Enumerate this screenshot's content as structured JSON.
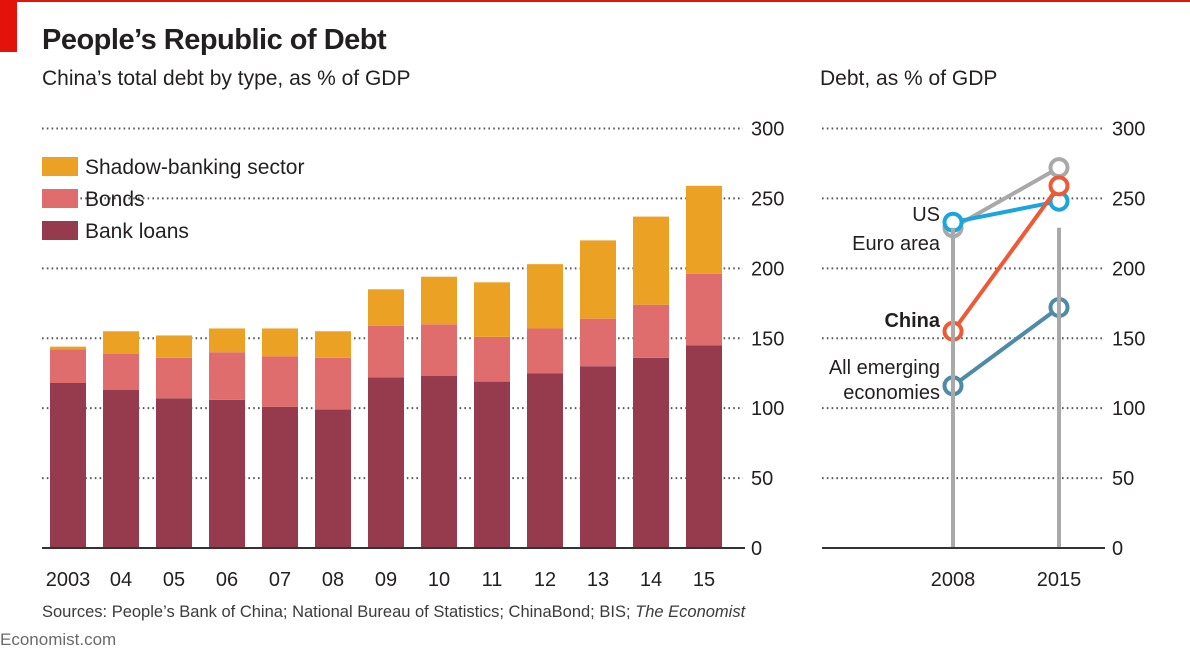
{
  "header": {
    "title": "People’s Republic of Debt",
    "subtitle_left": "China’s total debt by type, as % of GDP",
    "subtitle_right": "Debt, as % of GDP"
  },
  "footer": {
    "sources_prefix": "Sources: People’s Bank of China; National Bureau of Statistics; ChinaBond; BIS; ",
    "sources_italic": "The Economist",
    "brand": "Economist.com"
  },
  "colors": {
    "brand_red": "#e3120b",
    "shadow_banking": "#eba224",
    "bonds": "#df6d6d",
    "bank_loans": "#963b4d",
    "us": "#1ba5dc",
    "euro_area": "#a9a9a9",
    "china": "#ee5a36",
    "emerging": "#4d8ba6"
  },
  "chart_data": [
    {
      "type": "bar",
      "stacked": true,
      "title": "China’s total debt by type, as % of GDP",
      "xlabel": "",
      "ylabel": "",
      "categories": [
        "2003",
        "04",
        "05",
        "06",
        "07",
        "08",
        "09",
        "10",
        "11",
        "12",
        "13",
        "14",
        "15"
      ],
      "series": [
        {
          "name": "Bank loans",
          "color": "#963b4d",
          "values": [
            118,
            113,
            107,
            106,
            101,
            99,
            122,
            123,
            119,
            125,
            130,
            136,
            145
          ]
        },
        {
          "name": "Bonds",
          "color": "#df6d6d",
          "values": [
            24,
            26,
            29,
            34,
            36,
            37,
            37,
            37,
            32,
            32,
            34,
            38,
            51
          ]
        },
        {
          "name": "Shadow-banking sector",
          "color": "#eba224",
          "values": [
            2,
            16,
            16,
            17,
            20,
            19,
            26,
            34,
            39,
            46,
            56,
            63,
            63
          ]
        }
      ],
      "totals": [
        144,
        155,
        152,
        157,
        157,
        155,
        185,
        194,
        190,
        203,
        220,
        237,
        259
      ],
      "legend": [
        "Shadow-banking sector",
        "Bonds",
        "Bank loans"
      ],
      "legend_position": "top-left",
      "yticks": [
        0,
        50,
        100,
        150,
        200,
        250,
        300
      ],
      "ylim": [
        0,
        300
      ],
      "yaxis_side": "right",
      "grid": true
    },
    {
      "type": "line",
      "title": "Debt, as % of GDP",
      "x": [
        "2008",
        "2015"
      ],
      "series": [
        {
          "name": "Euro area",
          "color": "#a9a9a9",
          "values": [
            229,
            272
          ],
          "bold": false
        },
        {
          "name": "US",
          "color": "#1ba5dc",
          "values": [
            233,
            248
          ],
          "bold": false
        },
        {
          "name": "China",
          "color": "#ee5a36",
          "values": [
            155,
            259
          ],
          "bold": true
        },
        {
          "name": "All emerging economies",
          "color": "#4d8ba6",
          "values": [
            116,
            172
          ],
          "bold": false
        }
      ],
      "labels": [
        {
          "series": "US",
          "lines": [
            "US"
          ]
        },
        {
          "series": "Euro area",
          "lines": [
            "Euro area"
          ]
        },
        {
          "series": "China",
          "lines": [
            "China"
          ]
        },
        {
          "series": "All emerging economies",
          "lines": [
            "All emerging",
            "economies"
          ]
        }
      ],
      "yticks": [
        0,
        50,
        100,
        150,
        200,
        250,
        300
      ],
      "ylim": [
        0,
        300
      ],
      "yaxis_side": "right",
      "grid": true
    }
  ]
}
